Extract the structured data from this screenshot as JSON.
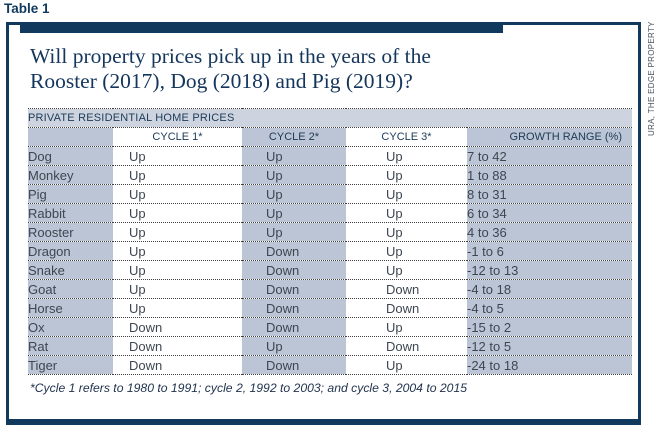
{
  "page": {
    "table_label": "Table 1",
    "source": "URA, THE EDGE PROPERTY"
  },
  "chart_data": {
    "type": "table",
    "title": "Will property prices pick up in the years of the\nRooster (2017), Dog (2018) and Pig (2019)?",
    "subtitle": "PRIVATE RESIDENTIAL HOME PRICES",
    "columns": [
      "",
      "CYCLE 1*",
      "CYCLE 2*",
      "CYCLE 3*",
      "GROWTH RANGE (%)"
    ],
    "rows": [
      [
        "Dog",
        "Up",
        "Up",
        "Up",
        "7 to 42"
      ],
      [
        "Monkey",
        "Up",
        "Up",
        "Up",
        "1 to 88"
      ],
      [
        "Pig",
        "Up",
        "Up",
        "Up",
        "8 to 31"
      ],
      [
        "Rabbit",
        "Up",
        "Up",
        "Up",
        "6 to 34"
      ],
      [
        "Rooster",
        "Up",
        "Up",
        "Up",
        "4 to 36"
      ],
      [
        "Dragon",
        "Up",
        "Down",
        "Up",
        "-1 to 6"
      ],
      [
        "Snake",
        "Up",
        "Down",
        "Up",
        "-12 to 13"
      ],
      [
        "Goat",
        "Up",
        "Down",
        "Down",
        "-4 to 18"
      ],
      [
        "Horse",
        "Up",
        "Down",
        "Down",
        "-4 to 5"
      ],
      [
        "Ox",
        "Down",
        "Down",
        "Up",
        "-15 to 2"
      ],
      [
        "Rat",
        "Down",
        "Up",
        "Down",
        "-12 to 5"
      ],
      [
        "Tiger",
        "Down",
        "Down",
        "Up",
        "-24 to 18"
      ]
    ],
    "footnote": "*Cycle 1 refers to 1980 to 1991; cycle 2, 1992 to 2003; and cycle 3, 2004 to 2015",
    "source": "URA, THE EDGE PROPERTY",
    "legend_position": "none",
    "grid": "dotted-row-separators"
  },
  "colors": {
    "navy": "#11395e",
    "column_gray": "#bcc5d5",
    "band_gray": "#cdd4df",
    "body_text": "#3d4752",
    "header_text": "#1c3a57",
    "title_text": "#15365c"
  }
}
